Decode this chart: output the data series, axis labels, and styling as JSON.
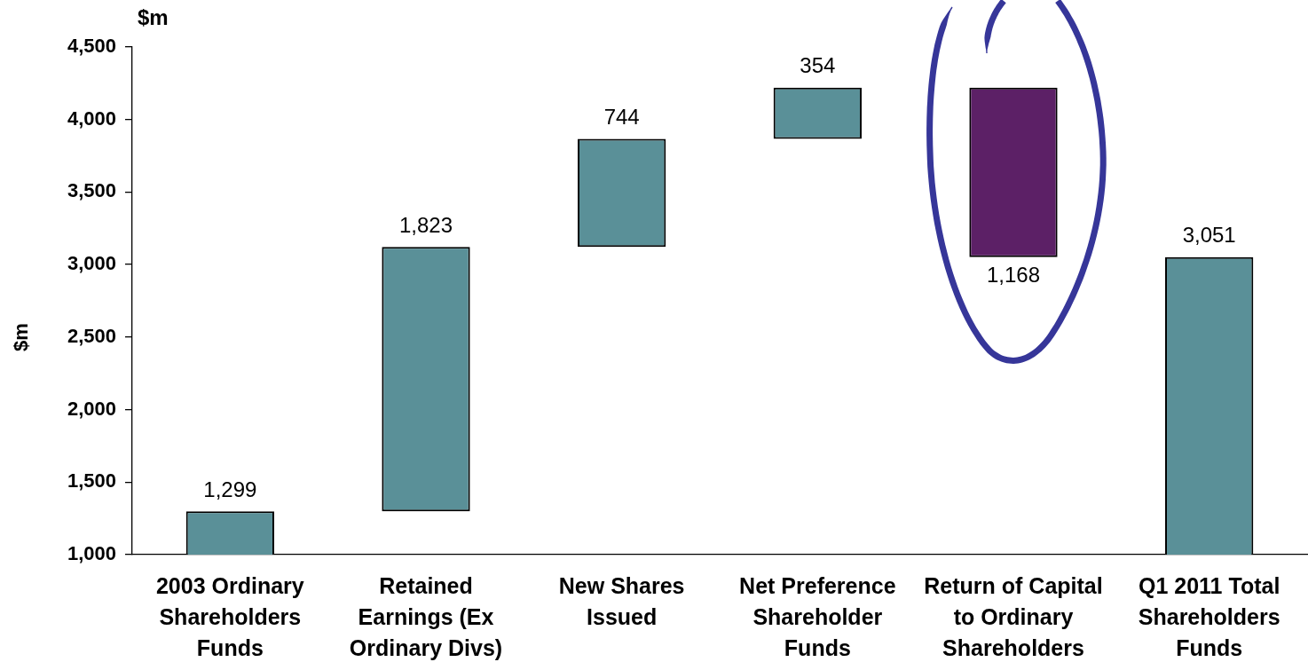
{
  "chart_data": {
    "type": "bar",
    "title": "$m",
    "ylabel": "$m",
    "categories": [
      "2003 Ordinary Shareholders Funds",
      "Retained Earnings (Ex Ordinary Divs)",
      "New Shares Issued",
      "Net Preference Shareholder Funds",
      "Return of Capital to Ordinary Shareholders",
      "Q1 2011 Total Shareholders Funds"
    ],
    "values": [
      1299,
      1823,
      744,
      354,
      -1168,
      3051
    ],
    "base": [
      null,
      1299,
      3122,
      3866,
      4220,
      null
    ],
    "colors": [
      "#5a9098",
      "#5a9098",
      "#5a9098",
      "#5a9098",
      "#5c2066",
      "#5a9098"
    ],
    "value_labels": [
      "1,299",
      "1,823",
      "744",
      "354",
      "1,168",
      "3,051"
    ],
    "ylim": [
      1000,
      4500
    ],
    "yticks": [
      {
        "value": 1000,
        "label": "1,000"
      },
      {
        "value": 1500,
        "label": "1,500"
      },
      {
        "value": 2000,
        "label": "2,000"
      },
      {
        "value": 2500,
        "label": "2,500"
      },
      {
        "value": 3000,
        "label": "3,000"
      },
      {
        "value": 3500,
        "label": "3,500"
      },
      {
        "value": 4000,
        "label": "4,000"
      },
      {
        "value": 4500,
        "label": "4,500"
      }
    ]
  }
}
